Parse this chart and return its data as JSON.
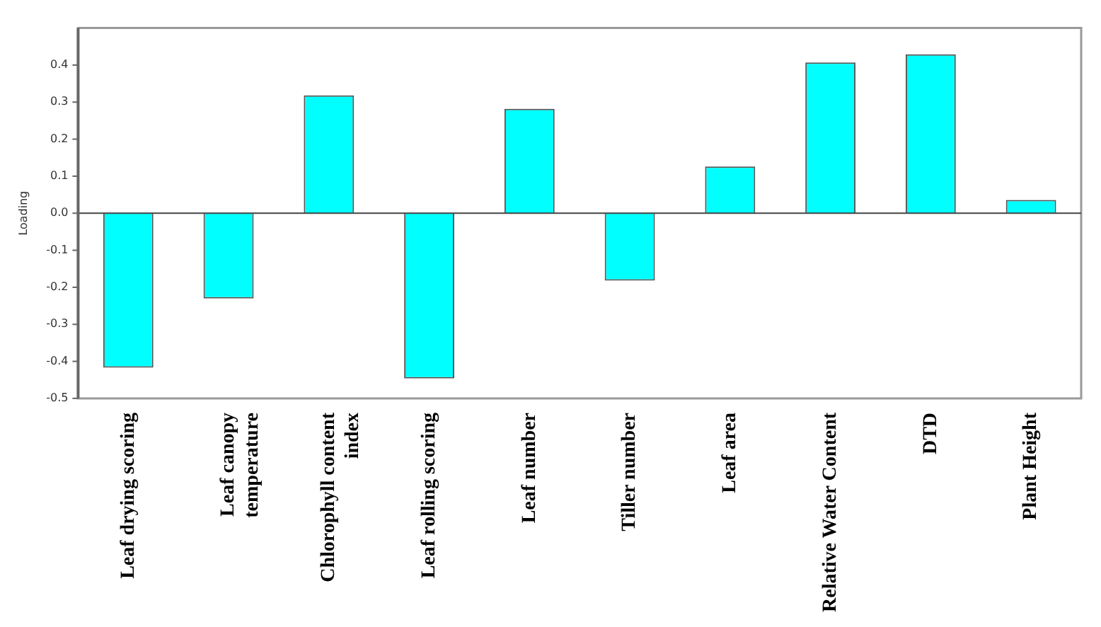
{
  "chart_data": {
    "type": "bar",
    "ylabel": "Loading",
    "categories": [
      "Leaf drying scoring",
      "Leaf canopy temperature",
      "Chlorophyll content index",
      "Leaf rolling scoring",
      "Leaf number",
      "Tiller number",
      "Leaf area",
      "Relative Water Content",
      "DTD",
      "Plant Height"
    ],
    "values": [
      -0.417,
      -0.23,
      0.318,
      -0.446,
      0.282,
      -0.182,
      0.126,
      0.407,
      0.429,
      0.036
    ],
    "color": "#00ffff",
    "ylim": [
      -0.5,
      0.5
    ],
    "yticks": [
      -0.5,
      -0.4,
      -0.3,
      -0.2,
      -0.1,
      {
        "value": 0,
        "label": "0.0"
      },
      0.1,
      0.2,
      0.3,
      0.4
    ],
    "legend": false
  }
}
